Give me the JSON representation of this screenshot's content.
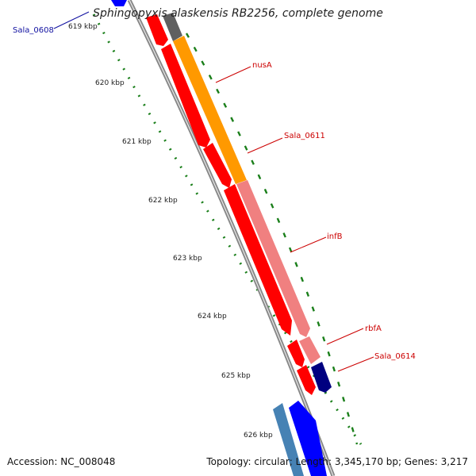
{
  "title": "Sphingopyxis alaskensis RB2256, complete genome",
  "footer": {
    "accession": "Accession: NC_008048",
    "summary": "Topology: circular; Length: 3,345,170 bp; Genes: 3,217"
  },
  "ruler": {
    "ticks": [
      {
        "label": "619 kbp",
        "pos_kbp": 619
      },
      {
        "label": "620 kbp",
        "pos_kbp": 620
      },
      {
        "label": "621 kbp",
        "pos_kbp": 621
      },
      {
        "label": "622 kbp",
        "pos_kbp": 622
      },
      {
        "label": "623 kbp",
        "pos_kbp": 623
      },
      {
        "label": "624 kbp",
        "pos_kbp": 624
      },
      {
        "label": "625 kbp",
        "pos_kbp": 625
      },
      {
        "label": "626 kbp",
        "pos_kbp": 626
      }
    ]
  },
  "features": [
    {
      "label": "Sala_0608",
      "color": "#1010a0"
    },
    {
      "label": "nusA",
      "color": "#cc0000"
    },
    {
      "label": "Sala_0611",
      "color": "#cc0000"
    },
    {
      "label": "infB",
      "color": "#cc0000"
    },
    {
      "label": "rbfA",
      "color": "#cc0000"
    },
    {
      "label": "Sala_0614",
      "color": "#cc0000"
    }
  ],
  "colors": {
    "cds": "#ff0000",
    "gene_orange": "#ff9900",
    "gene_pink": "#f08080",
    "gene_dark_blue": "#000080",
    "gene_blue": "#0000ff",
    "gene_steel_blue": "#4682b4",
    "gene_grey": "#606060",
    "backbone": "#777777",
    "tick_green": "#006400"
  }
}
